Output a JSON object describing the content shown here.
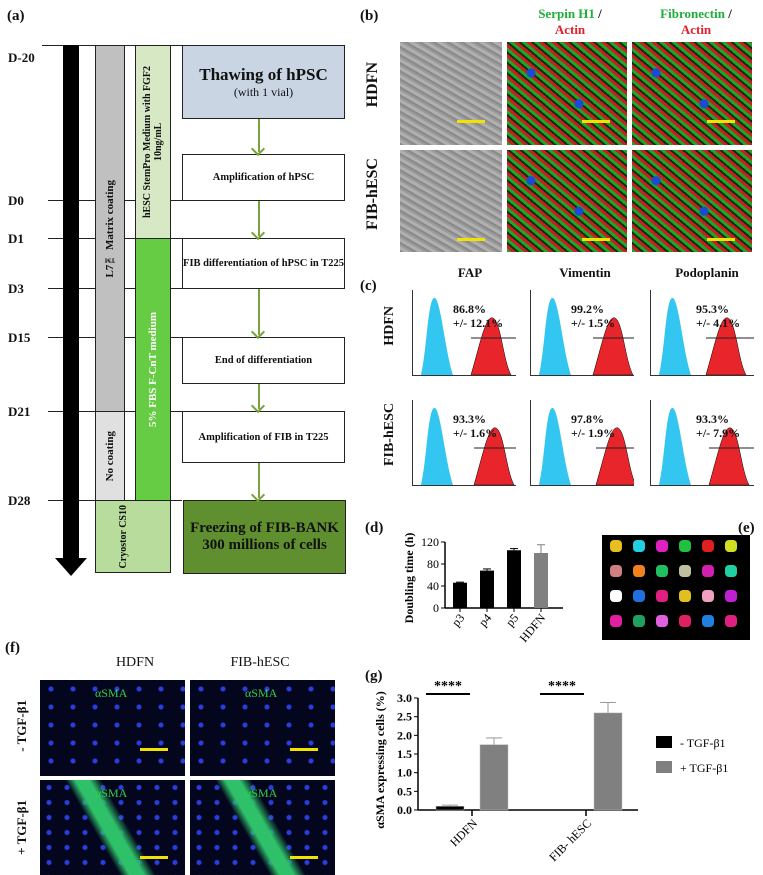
{
  "panel_labels": {
    "a": "(a)",
    "b": "(b)",
    "c": "(c)",
    "d": "(d)",
    "e": "(e)",
    "f": "(f)",
    "g": "(g)"
  },
  "timeline": {
    "days": [
      "D-20",
      "D0",
      "D1",
      "D3",
      "D15",
      "D21",
      "D28"
    ],
    "coating": "L7™ Matrix coating",
    "no_coating": "No coating",
    "medium1": "hESC StemPro Medium with FGF2 10ng/mL",
    "medium2": "5% FBS F-CnT medium",
    "freeze_medium": "Cryostor CS10",
    "steps": [
      {
        "title": "Thawing of hPSC",
        "sub": "(with 1 vial)"
      },
      {
        "title": "Amplification of hPSC"
      },
      {
        "title": "FIB differentiation of hPSC in T225"
      },
      {
        "title": "End of differentiation"
      },
      {
        "title": "Amplification of FIB in T225"
      },
      {
        "title": "Freezing of FIB-BANK",
        "sub": "300 millions of cells"
      }
    ],
    "colors": {
      "thaw": "#c9d5e2",
      "light_green": "#d6e8c4",
      "green": "#66cc44",
      "cryo": "#b8dc9c",
      "freeze": "#5f8f2e",
      "grey": "#c0c0c0",
      "light_grey": "#e0e0e0",
      "arrow": "#7aa23c"
    }
  },
  "panel_b": {
    "rows": [
      "HDFN",
      "FIB-hESC"
    ],
    "columns": [
      {
        "a": "Serpin H1",
        "b": "Actin"
      },
      {
        "a": "Fibronectin",
        "b": "Actin"
      }
    ],
    "colors": {
      "green": "#1fae3a",
      "red": "#e0202a"
    }
  },
  "panel_c": {
    "markers": [
      "FAP",
      "Vimentin",
      "Podoplanin"
    ],
    "rows": [
      {
        "label": "HDFN",
        "values": [
          {
            "pct": "86.8%",
            "sd": "+/- 12.1%"
          },
          {
            "pct": "99.2%",
            "sd": "+/- 1.5%"
          },
          {
            "pct": "95.3%",
            "sd": "+/- 4.1%"
          }
        ]
      },
      {
        "label": "FIB-hESC",
        "values": [
          {
            "pct": "93.3%",
            "sd": "+/- 1.6%"
          },
          {
            "pct": "97.8%",
            "sd": "+/- 1.9%"
          },
          {
            "pct": "93.3%",
            "sd": "+/- 7.9%"
          }
        ]
      }
    ],
    "colors": {
      "control": "#33c6f0",
      "stained": "#e8252a"
    }
  },
  "panel_f": {
    "columns": [
      "HDFN",
      "FIB-hESC"
    ],
    "rows": [
      "- TGF-β1",
      "+ TGF-β1"
    ],
    "stain": "αSMA"
  },
  "chart_data": [
    {
      "type": "bar",
      "ylabel": "Doubling time (h)",
      "categories": [
        "p3",
        "p4",
        "p5",
        "HDFN"
      ],
      "values": [
        46,
        68,
        105,
        100
      ],
      "errors": [
        1,
        3,
        3,
        15
      ],
      "ylim": [
        0,
        120
      ],
      "yticks": [
        "0",
        "40",
        "80",
        "120"
      ],
      "colors": [
        "#000000",
        "#000000",
        "#000000",
        "#808080"
      ]
    },
    {
      "type": "bar",
      "ylabel": "αSMA expressing cells (%)",
      "categories": [
        "HDFN",
        "FIB- hESC"
      ],
      "series": [
        {
          "name": "- TGF-β1",
          "values": [
            0.1,
            0
          ],
          "errors": [
            0.03,
            0
          ],
          "color": "#000000"
        },
        {
          "name": "+ TGF-β1",
          "values": [
            1.75,
            2.6
          ],
          "errors": [
            0.18,
            0.28
          ],
          "color": "#808080"
        }
      ],
      "ylim": [
        0,
        3.0
      ],
      "yticks": [
        "0.0",
        "0.5",
        "1.0",
        "1.5",
        "2.0",
        "2.5",
        "3.0"
      ],
      "significance": [
        "****",
        "****"
      ],
      "legend": "right"
    }
  ]
}
